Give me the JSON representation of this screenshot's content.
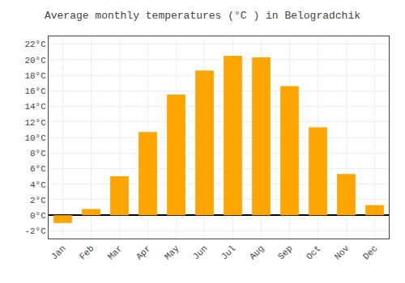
{
  "chart_data": {
    "type": "bar",
    "title": "Average monthly temperatures (°C ) in Belogradchik",
    "categories": [
      "Jan",
      "Feb",
      "Mar",
      "Apr",
      "May",
      "Jun",
      "Jul",
      "Aug",
      "Sep",
      "Oct",
      "Nov",
      "Dec"
    ],
    "values": [
      -1.0,
      0.8,
      5.0,
      10.7,
      15.5,
      18.6,
      20.5,
      20.3,
      16.6,
      11.3,
      5.3,
      1.3
    ],
    "color": "#FFA500",
    "ylim": [
      -3,
      23
    ],
    "yticks": [
      {
        "value": -2,
        "label": "-2°C"
      },
      {
        "value": 0,
        "label": "0°C"
      },
      {
        "value": 2,
        "label": "2°C"
      },
      {
        "value": 4,
        "label": "4°C"
      },
      {
        "value": 6,
        "label": "6°C"
      },
      {
        "value": 8,
        "label": "8°C"
      },
      {
        "value": 10,
        "label": "10°C"
      },
      {
        "value": 12,
        "label": "12°C"
      },
      {
        "value": 14,
        "label": "14°C"
      },
      {
        "value": 16,
        "label": "16°C"
      },
      {
        "value": 18,
        "label": "18°C"
      },
      {
        "value": 20,
        "label": "20°C"
      },
      {
        "value": 22,
        "label": "22°C"
      }
    ],
    "grid": true
  }
}
